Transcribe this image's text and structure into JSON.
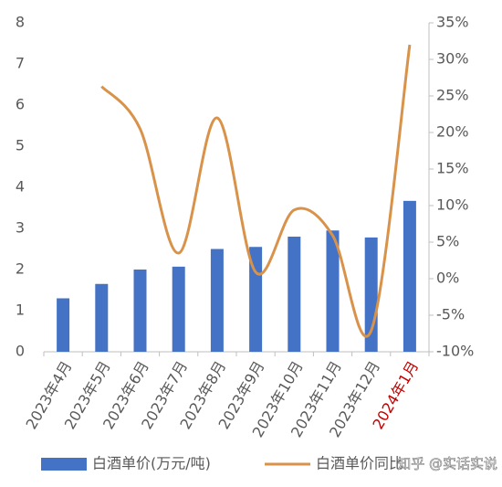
{
  "chart_data": {
    "type": "bar-line",
    "categories": [
      "2023年4月",
      "2023年5月",
      "2023年6月",
      "2023年7月",
      "2023年8月",
      "2023年9月",
      "2023年10月",
      "2023年11月",
      "2023年12月",
      "2024年1月"
    ],
    "x_label_colors": [
      "#595959",
      "#595959",
      "#595959",
      "#595959",
      "#595959",
      "#595959",
      "#595959",
      "#595959",
      "#595959",
      "#c00000"
    ],
    "series": [
      {
        "name": "白酒单价(万元/吨)",
        "type": "bar",
        "color": "#4472c4",
        "values": [
          1.3,
          1.65,
          2.0,
          2.07,
          2.5,
          2.55,
          2.8,
          2.95,
          2.78,
          3.67
        ]
      },
      {
        "name": "白酒单价同比",
        "type": "line",
        "axis": "y2",
        "color": "#d9924a",
        "values": [
          null,
          26.3,
          20.5,
          3.5,
          22,
          0.9,
          9.4,
          5.9,
          -7.1,
          32
        ]
      }
    ],
    "ylim": [
      0,
      8
    ],
    "yticks": [
      0,
      1,
      2,
      3,
      4,
      5,
      6,
      7,
      8
    ],
    "y2lim": [
      -10,
      35
    ],
    "y2ticks": [
      {
        "value": 35,
        "label": "35%"
      },
      {
        "value": 30,
        "label": "30%"
      },
      {
        "value": 25,
        "label": "25%"
      },
      {
        "value": 20,
        "label": "20%"
      },
      {
        "value": 15,
        "label": "15%"
      },
      {
        "value": 10,
        "label": "10%"
      },
      {
        "value": 5,
        "label": "5%"
      },
      {
        "value": 0,
        "label": "0%"
      },
      {
        "value": -5,
        "label": "-5%"
      },
      {
        "value": -10,
        "label": "-10%"
      }
    ],
    "watermark": "知乎 @实话实说"
  }
}
